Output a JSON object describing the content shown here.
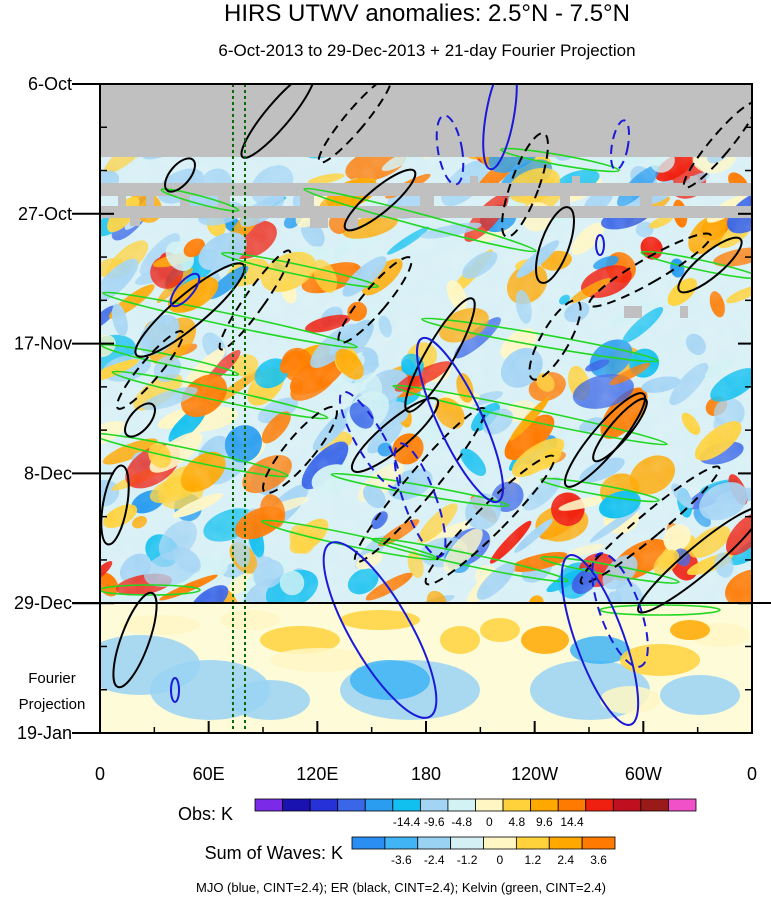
{
  "chart_data": {
    "type": "heatmap",
    "title": "HIRS UTWV anomalies: 2.5°N - 7.5°N",
    "subtitle": "6-Oct-2013 to 29-Dec-2013 + 21-day Fourier Projection",
    "x_ticks": [
      "0",
      "60E",
      "120E",
      "180",
      "120W",
      "60W",
      "0"
    ],
    "x_tick_values": [
      0,
      60,
      120,
      180,
      240,
      300,
      360
    ],
    "xlim": [
      0,
      360
    ],
    "y_ticks": [
      "6-Oct",
      "27-Oct",
      "17-Nov",
      "8-Dec",
      "29-Dec",
      "19-Jan"
    ],
    "y_tick_days": [
      0,
      21,
      42,
      63,
      84,
      105
    ],
    "ylim_days": [
      0,
      105
    ],
    "projection_label": [
      "Fourier",
      "Projection"
    ],
    "projection_start_day": 84,
    "missing_data_until_day": 12,
    "reference_lines_lon": [
      73,
      79
    ],
    "obs_colorbar": {
      "label": "Obs: K",
      "ticks": [
        "-14.4",
        "-9.6",
        "-4.8",
        "0",
        "4.8",
        "9.6",
        "14.4"
      ],
      "colors": [
        "#7b2be8",
        "#1a12b0",
        "#2632d8",
        "#3a66e8",
        "#2a9df0",
        "#12c0f0",
        "#a4d4f4",
        "#d2f2f4",
        "#fff6c4",
        "#ffd23c",
        "#ffa800",
        "#ff7a00",
        "#f02010",
        "#c01020",
        "#9a1a1a",
        "#f050c8"
      ]
    },
    "waves_colorbar": {
      "label": "Sum of Waves: K",
      "ticks": [
        "-3.6",
        "-2.4",
        "-1.2",
        "0",
        "1.2",
        "2.4",
        "3.6"
      ],
      "colors": [
        "#2a8ef2",
        "#40b4f4",
        "#9ad2f4",
        "#d4f0f4",
        "#fff6c4",
        "#ffd23c",
        "#ffa800",
        "#ff7a00"
      ]
    },
    "footer": "MJO (blue, CINT=2.4); ER (black, CINT=2.4); Kelvin (green, CINT=2.4)",
    "contour_colors": {
      "mjo": "#1a1ad8",
      "er": "#000000",
      "kelvin": "#22d822"
    }
  }
}
